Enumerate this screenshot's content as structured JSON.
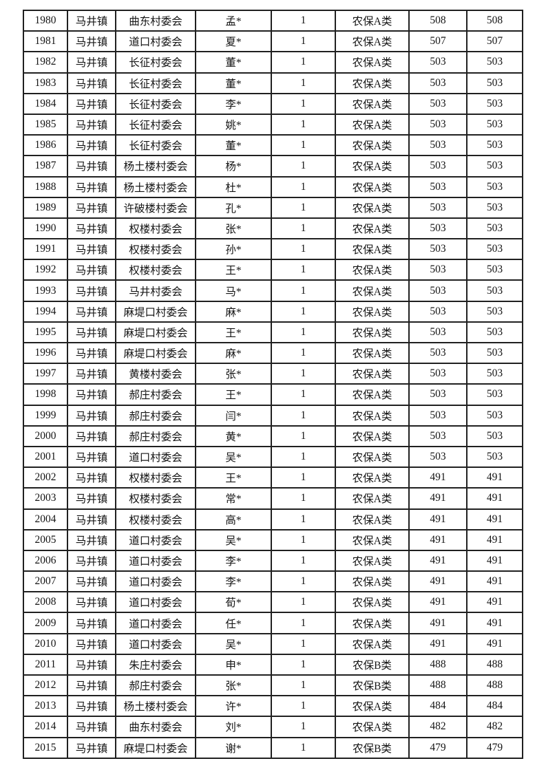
{
  "table": {
    "columns": [
      "serial",
      "town",
      "village",
      "name",
      "count",
      "category",
      "amount1",
      "amount2"
    ],
    "rows": [
      [
        "1980",
        "马井镇",
        "曲东村委会",
        "孟*",
        "1",
        "农保A类",
        "508",
        "508"
      ],
      [
        "1981",
        "马井镇",
        "道口村委会",
        "夏*",
        "1",
        "农保A类",
        "507",
        "507"
      ],
      [
        "1982",
        "马井镇",
        "长征村委会",
        "董*",
        "1",
        "农保A类",
        "503",
        "503"
      ],
      [
        "1983",
        "马井镇",
        "长征村委会",
        "董*",
        "1",
        "农保A类",
        "503",
        "503"
      ],
      [
        "1984",
        "马井镇",
        "长征村委会",
        "李*",
        "1",
        "农保A类",
        "503",
        "503"
      ],
      [
        "1985",
        "马井镇",
        "长征村委会",
        "姚*",
        "1",
        "农保A类",
        "503",
        "503"
      ],
      [
        "1986",
        "马井镇",
        "长征村委会",
        "董*",
        "1",
        "农保A类",
        "503",
        "503"
      ],
      [
        "1987",
        "马井镇",
        "杨土楼村委会",
        "杨*",
        "1",
        "农保A类",
        "503",
        "503"
      ],
      [
        "1988",
        "马井镇",
        "杨土楼村委会",
        "杜*",
        "1",
        "农保A类",
        "503",
        "503"
      ],
      [
        "1989",
        "马井镇",
        "许破楼村委会",
        "孔*",
        "1",
        "农保A类",
        "503",
        "503"
      ],
      [
        "1990",
        "马井镇",
        "权楼村委会",
        "张*",
        "1",
        "农保A类",
        "503",
        "503"
      ],
      [
        "1991",
        "马井镇",
        "权楼村委会",
        "孙*",
        "1",
        "农保A类",
        "503",
        "503"
      ],
      [
        "1992",
        "马井镇",
        "权楼村委会",
        "王*",
        "1",
        "农保A类",
        "503",
        "503"
      ],
      [
        "1993",
        "马井镇",
        "马井村委会",
        "马*",
        "1",
        "农保A类",
        "503",
        "503"
      ],
      [
        "1994",
        "马井镇",
        "麻堤口村委会",
        "麻*",
        "1",
        "农保A类",
        "503",
        "503"
      ],
      [
        "1995",
        "马井镇",
        "麻堤口村委会",
        "王*",
        "1",
        "农保A类",
        "503",
        "503"
      ],
      [
        "1996",
        "马井镇",
        "麻堤口村委会",
        "麻*",
        "1",
        "农保A类",
        "503",
        "503"
      ],
      [
        "1997",
        "马井镇",
        "黄楼村委会",
        "张*",
        "1",
        "农保A类",
        "503",
        "503"
      ],
      [
        "1998",
        "马井镇",
        "郝庄村委会",
        "王*",
        "1",
        "农保A类",
        "503",
        "503"
      ],
      [
        "1999",
        "马井镇",
        "郝庄村委会",
        "闫*",
        "1",
        "农保A类",
        "503",
        "503"
      ],
      [
        "2000",
        "马井镇",
        "郝庄村委会",
        "黄*",
        "1",
        "农保A类",
        "503",
        "503"
      ],
      [
        "2001",
        "马井镇",
        "道口村委会",
        "吴*",
        "1",
        "农保A类",
        "503",
        "503"
      ],
      [
        "2002",
        "马井镇",
        "权楼村委会",
        "王*",
        "1",
        "农保A类",
        "491",
        "491"
      ],
      [
        "2003",
        "马井镇",
        "权楼村委会",
        "常*",
        "1",
        "农保A类",
        "491",
        "491"
      ],
      [
        "2004",
        "马井镇",
        "权楼村委会",
        "高*",
        "1",
        "农保A类",
        "491",
        "491"
      ],
      [
        "2005",
        "马井镇",
        "道口村委会",
        "吴*",
        "1",
        "农保A类",
        "491",
        "491"
      ],
      [
        "2006",
        "马井镇",
        "道口村委会",
        "李*",
        "1",
        "农保A类",
        "491",
        "491"
      ],
      [
        "2007",
        "马井镇",
        "道口村委会",
        "李*",
        "1",
        "农保A类",
        "491",
        "491"
      ],
      [
        "2008",
        "马井镇",
        "道口村委会",
        "荀*",
        "1",
        "农保A类",
        "491",
        "491"
      ],
      [
        "2009",
        "马井镇",
        "道口村委会",
        "任*",
        "1",
        "农保A类",
        "491",
        "491"
      ],
      [
        "2010",
        "马井镇",
        "道口村委会",
        "吴*",
        "1",
        "农保A类",
        "491",
        "491"
      ],
      [
        "2011",
        "马井镇",
        "朱庄村委会",
        "申*",
        "1",
        "农保B类",
        "488",
        "488"
      ],
      [
        "2012",
        "马井镇",
        "郝庄村委会",
        "张*",
        "1",
        "农保B类",
        "488",
        "488"
      ],
      [
        "2013",
        "马井镇",
        "杨土楼村委会",
        "许*",
        "1",
        "农保A类",
        "484",
        "484"
      ],
      [
        "2014",
        "马井镇",
        "曲东村委会",
        "刘*",
        "1",
        "农保A类",
        "482",
        "482"
      ],
      [
        "2015",
        "马井镇",
        "麻堤口村委会",
        "谢*",
        "1",
        "农保B类",
        "479",
        "479"
      ]
    ]
  },
  "colors": {
    "page_background": "#ffffff",
    "border": "#1f1f1f",
    "text": "#141414"
  }
}
